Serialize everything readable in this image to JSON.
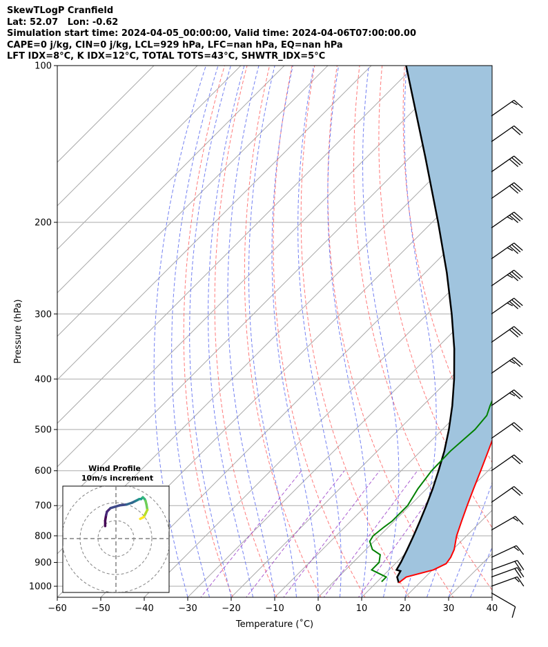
{
  "header": {
    "line1": "SkewTLogP Cranfield",
    "line2": "Lat: 52.07   Lon: -0.62",
    "line3": "Simulation start time: 2024-04-05_00:00:00, Valid time: 2024-04-06T07:00:00.00",
    "line4": "CAPE=0 j/kg, CIN=0 j/kg, LCL=929 hPa, LFC=nan hPa, EQ=nan hPa",
    "line5": "LFT IDX=8°C, K IDX=12°C, TOTAL TOTS=43°C, SHWTR_IDX=5°C"
  },
  "chart_data": {
    "type": "line",
    "title": "SkewTLogP Cranfield",
    "xlabel": "Temperature (˚C)",
    "ylabel": "Pressure (hPa)",
    "xlim": [
      -60,
      40
    ],
    "ylim": [
      1050,
      100
    ],
    "y_scale": "log",
    "grid": true,
    "x_ticks": [
      -60,
      -50,
      -40,
      -30,
      -20,
      -10,
      0,
      10,
      20,
      30,
      40
    ],
    "y_ticks": [
      100,
      200,
      300,
      400,
      500,
      600,
      700,
      800,
      900,
      1000
    ],
    "colors": {
      "temperature": "#ff0000",
      "dewpoint": "#008000",
      "parcel": "#000000",
      "cape_fill": "#a0c4de",
      "dry_adiabat": "#ff6a6a",
      "moist_adiabat": "#5a6af0",
      "mixing_ratio": "#9a40c8",
      "isotherm": "#aaaaaa"
    },
    "series": [
      {
        "key": "temperature",
        "pressure": [
          985,
          960,
          930,
          905,
          880,
          850,
          800,
          750,
          700,
          650,
          600,
          550,
          500,
          450,
          400,
          350,
          300,
          270,
          250,
          230,
          210,
          200,
          190,
          180,
          175,
          170,
          160,
          150,
          140,
          130,
          120,
          110,
          100
        ],
        "values": [
          15.2,
          15.6,
          20.2,
          21.7,
          21.3,
          20.3,
          17.7,
          15.5,
          13.2,
          10.8,
          8.3,
          5.5,
          2.4,
          -1.0,
          -4.6,
          -8.6,
          -13.3,
          -16.4,
          -19.5,
          -23.0,
          -26.4,
          -28.3,
          -30.0,
          -29.7,
          -27.6,
          -26.0,
          -23.5,
          -21.5,
          -19.1,
          -15.9,
          -11.0,
          -4.2,
          -2.0
        ]
      },
      {
        "key": "dewpoint",
        "pressure": [
          980,
          960,
          930,
          900,
          870,
          850,
          820,
          800,
          770,
          750,
          700,
          650,
          600,
          550,
          500,
          470,
          450,
          400,
          350,
          300,
          280,
          250,
          230,
          210,
          200,
          190,
          180,
          170,
          160,
          150,
          140,
          130,
          120,
          110,
          100
        ],
        "values": [
          11.0,
          11.0,
          6.0,
          6.0,
          4.5,
          1.5,
          -1.0,
          -1.5,
          -1.0,
          -0.5,
          -0.5,
          -2.0,
          -3.0,
          -3.2,
          -2.5,
          -3.0,
          -4.5,
          -8.0,
          -11.8,
          -15.5,
          -19.0,
          -23.3,
          -24.0,
          -26.0,
          -27.2,
          -28.0,
          -28.0,
          -26.5,
          -22.5,
          -23.0,
          -23.5,
          -22.8,
          -20.5,
          -17.5,
          -14.5
        ]
      },
      {
        "key": "parcel",
        "pressure": [
          985,
          960,
          935,
          930,
          900,
          850,
          800,
          750,
          700,
          650,
          600,
          550,
          500,
          450,
          400,
          350,
          300,
          250,
          200,
          150,
          100
        ],
        "values": [
          15.2,
          13.5,
          12.9,
          11.7,
          11.0,
          9.5,
          7.8,
          5.9,
          3.8,
          1.4,
          -1.4,
          -4.6,
          -8.5,
          -13.2,
          -18.9,
          -25.8,
          -34.4,
          -45.0,
          -58.6,
          -76.5,
          -102.0
        ]
      }
    ],
    "wind_barbs": [
      {
        "pressure": 1030,
        "direction": 300,
        "speed": 10
      },
      {
        "pressure": 1000,
        "direction": 250,
        "speed": 15
      },
      {
        "pressure": 960,
        "direction": 250,
        "speed": 20
      },
      {
        "pressure": 930,
        "direction": 250,
        "speed": 20
      },
      {
        "pressure": 880,
        "direction": 245,
        "speed": 15
      },
      {
        "pressure": 780,
        "direction": 240,
        "speed": 15
      },
      {
        "pressure": 690,
        "direction": 235,
        "speed": 20
      },
      {
        "pressure": 600,
        "direction": 235,
        "speed": 20
      },
      {
        "pressure": 520,
        "direction": 235,
        "speed": 20
      },
      {
        "pressure": 450,
        "direction": 235,
        "speed": 25
      },
      {
        "pressure": 390,
        "direction": 235,
        "speed": 25
      },
      {
        "pressure": 340,
        "direction": 235,
        "speed": 30
      },
      {
        "pressure": 300,
        "direction": 235,
        "speed": 35
      },
      {
        "pressure": 265,
        "direction": 235,
        "speed": 35
      },
      {
        "pressure": 235,
        "direction": 235,
        "speed": 35
      },
      {
        "pressure": 205,
        "direction": 235,
        "speed": 35
      },
      {
        "pressure": 180,
        "direction": 235,
        "speed": 30
      },
      {
        "pressure": 160,
        "direction": 235,
        "speed": 30
      },
      {
        "pressure": 140,
        "direction": 235,
        "speed": 20
      },
      {
        "pressure": 125,
        "direction": 235,
        "speed": 15
      }
    ],
    "inset": {
      "title": "Wind Profile",
      "subtitle": "10m/s increment",
      "rings": [
        10,
        20,
        30
      ],
      "hodograph": {
        "u": [
          -6,
          -6,
          -5.5,
          -5,
          -3,
          2,
          6,
          9,
          11,
          13,
          14,
          15,
          16,
          16.5,
          17,
          17.5,
          16.5,
          15.5,
          13.5
        ],
        "v": [
          7,
          10,
          13,
          15,
          17,
          18.5,
          19,
          20,
          21,
          22,
          22,
          23,
          22,
          21,
          19,
          16,
          14,
          12,
          11
        ]
      }
    }
  }
}
